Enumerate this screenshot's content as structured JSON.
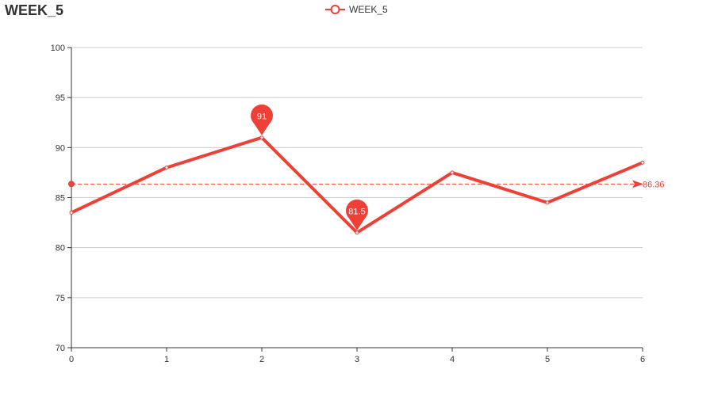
{
  "chart_data": {
    "type": "line",
    "title": "WEEK_5",
    "legend": {
      "position": "top-center",
      "entries": [
        "WEEK_5"
      ]
    },
    "x": [
      0,
      1,
      2,
      3,
      4,
      5,
      6
    ],
    "series": [
      {
        "name": "WEEK_5",
        "values": [
          83.5,
          88,
          91,
          81.5,
          87.5,
          84.5,
          88.5
        ]
      }
    ],
    "xlim": [
      0,
      6
    ],
    "ylim": [
      70,
      100
    ],
    "yticks": [
      70,
      75,
      80,
      85,
      90,
      95,
      100
    ],
    "xticks": [
      0,
      1,
      2,
      3,
      4,
      5,
      6
    ],
    "grid": true,
    "mark_points": [
      {
        "type": "max",
        "x": 2,
        "y": 91,
        "label": "91"
      },
      {
        "type": "min",
        "x": 3,
        "y": 81.5,
        "label": "81.5"
      }
    ],
    "mark_line": {
      "type": "average",
      "value": 86.36,
      "label": "86.36"
    },
    "colors": {
      "series": "#ee4036",
      "grid": "#cccccc",
      "axis": "#333333",
      "text": "#333333"
    }
  }
}
